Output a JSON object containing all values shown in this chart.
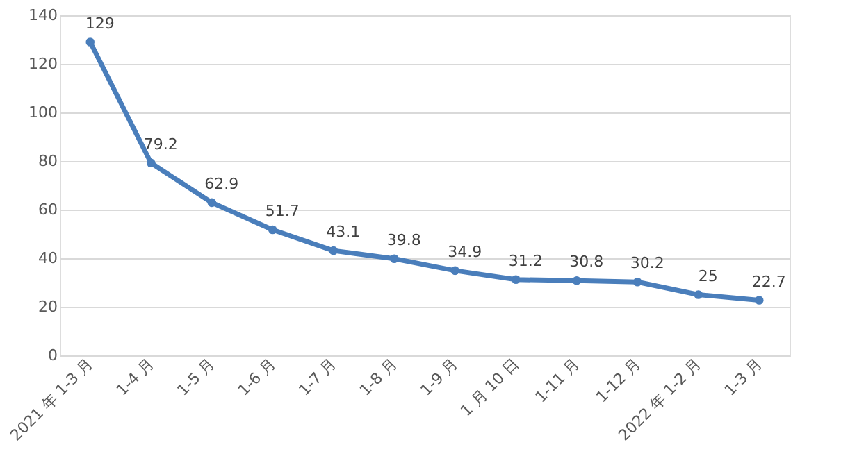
{
  "chart_data": {
    "type": "line",
    "categories": [
      "2021 年 1-3 月",
      "1-4 月",
      "1-5 月",
      "1-6 月",
      "1-7 月",
      "1-8 月",
      "1-9 月",
      "1 月 10 日",
      "1-11 月",
      "1-12 月",
      "2022 年 1-2 月",
      "1-3 月"
    ],
    "series": [
      {
        "color": "#4a7ebb",
        "values": [
          129,
          79.2,
          62.9,
          51.7,
          43.1,
          39.8,
          34.9,
          31.2,
          30.8,
          30.2,
          25,
          22.7
        ]
      }
    ],
    "ylim": [
      0,
      140
    ],
    "yticks": [
      0,
      20,
      40,
      60,
      80,
      100,
      120,
      140
    ],
    "grid": "y",
    "marker": "circle",
    "line_style": "solid",
    "data_labels": true
  }
}
